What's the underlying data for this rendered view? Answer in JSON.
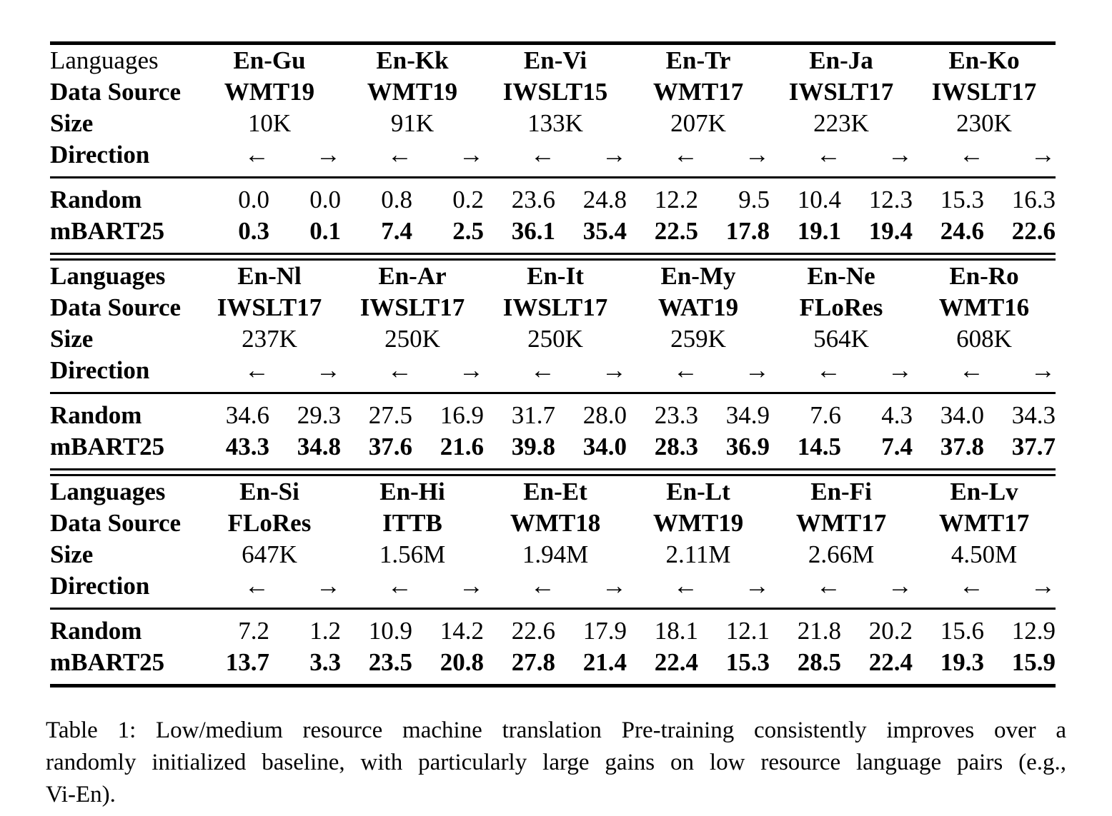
{
  "labels": {
    "languages": "Languages",
    "data_source": "Data Source",
    "size": "Size",
    "direction": "Direction",
    "random": "Random",
    "mbart25": "mBART25"
  },
  "direction": {
    "left_arrow": "←",
    "right_arrow": "→"
  },
  "colors": {
    "text": "#000000",
    "background": "#ffffff"
  },
  "blocks": [
    {
      "languages": [
        "En-Gu",
        "En-Kk",
        "En-Vi",
        "En-Tr",
        "En-Ja",
        "En-Ko"
      ],
      "data_sources": [
        "WMT19",
        "WMT19",
        "IWSLT15",
        "WMT17",
        "IWSLT17",
        "IWSLT17"
      ],
      "sizes": [
        "10K",
        "91K",
        "133K",
        "207K",
        "223K",
        "230K"
      ],
      "random": [
        "0.0",
        "0.0",
        "0.8",
        "0.2",
        "23.6",
        "24.8",
        "12.2",
        "9.5",
        "10.4",
        "12.3",
        "15.3",
        "16.3"
      ],
      "mbart25": [
        "0.3",
        "0.1",
        "7.4",
        "2.5",
        "36.1",
        "35.4",
        "22.5",
        "17.8",
        "19.1",
        "19.4",
        "24.6",
        "22.6"
      ]
    },
    {
      "languages": [
        "En-Nl",
        "En-Ar",
        "En-It",
        "En-My",
        "En-Ne",
        "En-Ro"
      ],
      "data_sources": [
        "IWSLT17",
        "IWSLT17",
        "IWSLT17",
        "WAT19",
        "FLoRes",
        "WMT16"
      ],
      "sizes": [
        "237K",
        "250K",
        "250K",
        "259K",
        "564K",
        "608K"
      ],
      "random": [
        "34.6",
        "29.3",
        "27.5",
        "16.9",
        "31.7",
        "28.0",
        "23.3",
        "34.9",
        "7.6",
        "4.3",
        "34.0",
        "34.3"
      ],
      "mbart25": [
        "43.3",
        "34.8",
        "37.6",
        "21.6",
        "39.8",
        "34.0",
        "28.3",
        "36.9",
        "14.5",
        "7.4",
        "37.8",
        "37.7"
      ]
    },
    {
      "languages": [
        "En-Si",
        "En-Hi",
        "En-Et",
        "En-Lt",
        "En-Fi",
        "En-Lv"
      ],
      "data_sources": [
        "FLoRes",
        "ITTB",
        "WMT18",
        "WMT19",
        "WMT17",
        "WMT17"
      ],
      "sizes": [
        "647K",
        "1.56M",
        "1.94M",
        "2.11M",
        "2.66M",
        "4.50M"
      ],
      "random": [
        "7.2",
        "1.2",
        "10.9",
        "14.2",
        "22.6",
        "17.9",
        "18.1",
        "12.1",
        "21.8",
        "20.2",
        "15.6",
        "12.9"
      ],
      "mbart25": [
        "13.7",
        "3.3",
        "23.5",
        "20.8",
        "27.8",
        "21.4",
        "22.4",
        "15.3",
        "28.5",
        "22.4",
        "19.3",
        "15.9"
      ]
    }
  ],
  "caption": {
    "lines": [
      "Table 1: Low/medium resource machine translation Pre-training consistently improves over a",
      "randomly initialized baseline, with particularly large gains on low resource language pairs (e.g.,",
      "Vi-En)."
    ]
  }
}
